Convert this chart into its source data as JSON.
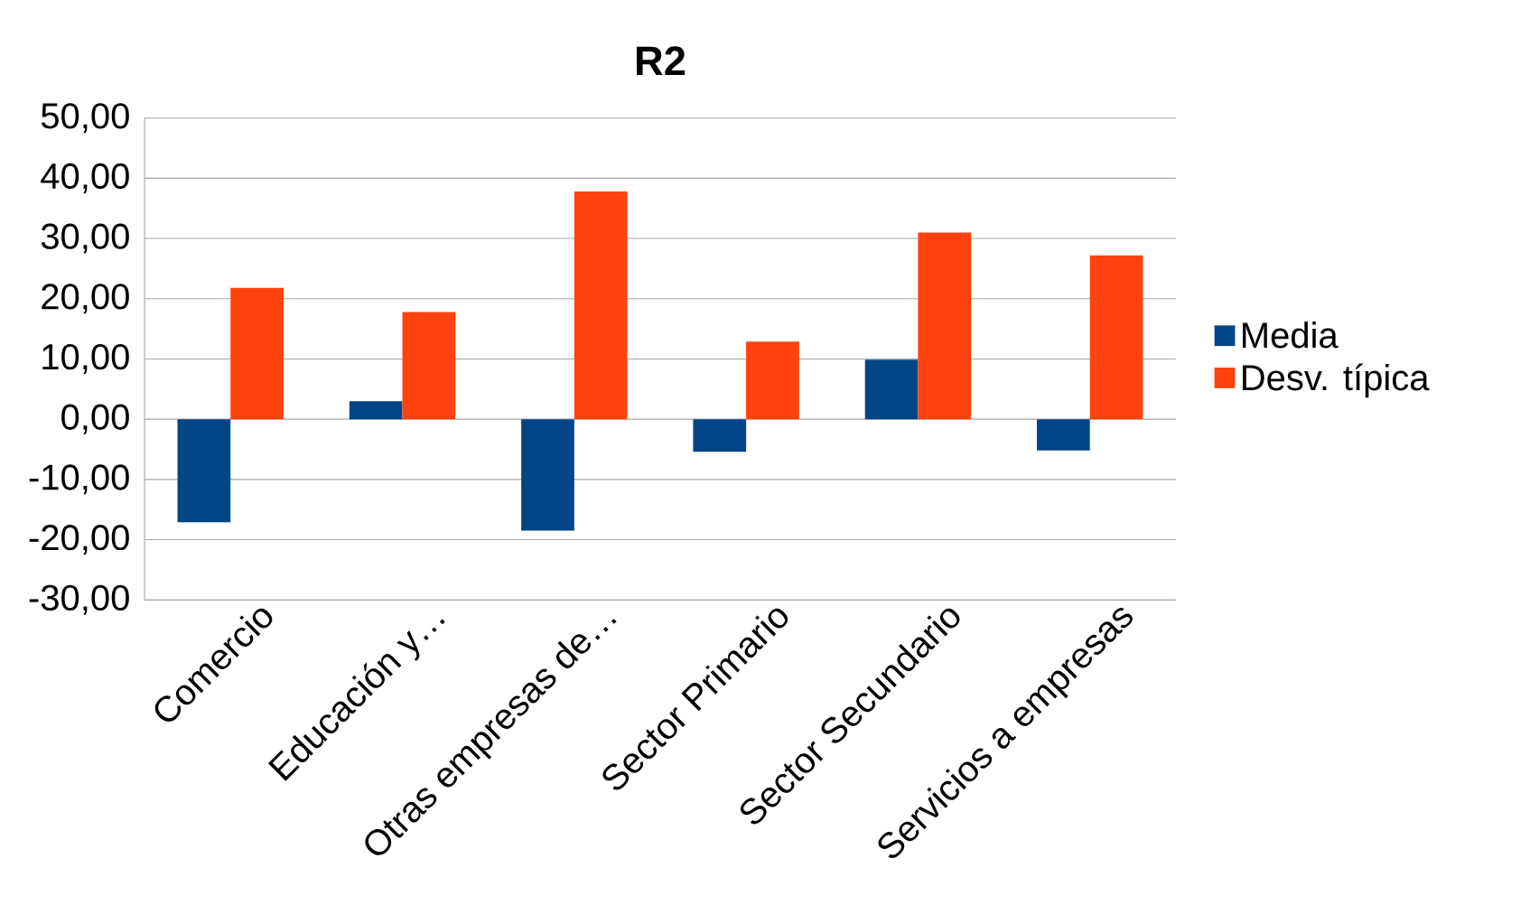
{
  "chart_data": {
    "type": "bar",
    "title": "R2",
    "categories": [
      "Comercio",
      "Educación y…",
      "Otras empresas de…",
      "Sector Primario",
      "Sector Secundario",
      "Servicios a empresas"
    ],
    "series": [
      {
        "name": "Media",
        "color": "#004586",
        "values": [
          -17.1,
          3.0,
          -18.5,
          -5.4,
          9.9,
          -5.2
        ]
      },
      {
        "name": "Desv. típica",
        "color": "#ff420e",
        "values": [
          21.8,
          17.8,
          37.8,
          12.9,
          31.0,
          27.2
        ]
      }
    ],
    "ylim": [
      -30,
      50
    ],
    "yticks": [
      {
        "value": -30,
        "label": "-30,00"
      },
      {
        "value": -20,
        "label": "-20,00"
      },
      {
        "value": -10,
        "label": "-10,00"
      },
      {
        "value": 0,
        "label": "0,00"
      },
      {
        "value": 10,
        "label": "10,00"
      },
      {
        "value": 20,
        "label": "20,00"
      },
      {
        "value": 30,
        "label": "30,00"
      },
      {
        "value": 40,
        "label": "40,00"
      },
      {
        "value": 50,
        "label": "50,00"
      }
    ],
    "grid": "y",
    "legend": "right"
  }
}
